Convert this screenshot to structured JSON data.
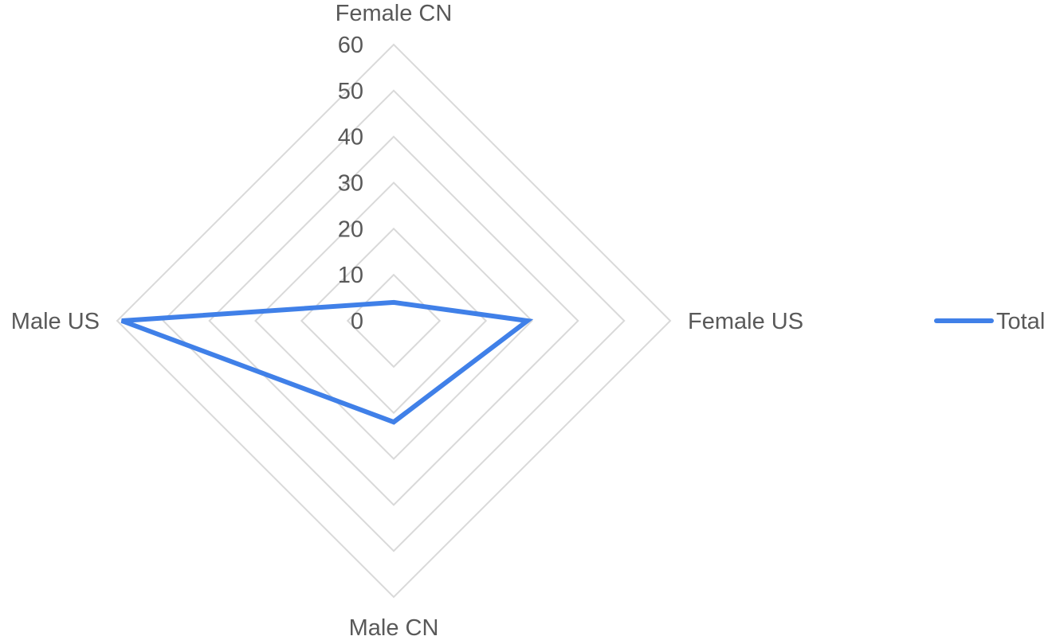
{
  "chart_data": {
    "type": "radar",
    "categories": [
      "Female CN",
      "Female US",
      "Male CN",
      "Male US"
    ],
    "series": [
      {
        "name": "Total",
        "values": [
          4,
          29,
          22,
          59
        ],
        "color": "#4080E8"
      }
    ],
    "rlim": [
      0,
      60
    ],
    "ticks": [
      0,
      10,
      20,
      30,
      40,
      50,
      60
    ],
    "tick_labels": [
      "0",
      "10",
      "20",
      "30",
      "40",
      "50",
      "60"
    ],
    "grid": true,
    "legend": {
      "position": "right",
      "entries": [
        "Total"
      ]
    },
    "colors": {
      "grid": "#d9d9d9",
      "text": "#595959"
    }
  }
}
